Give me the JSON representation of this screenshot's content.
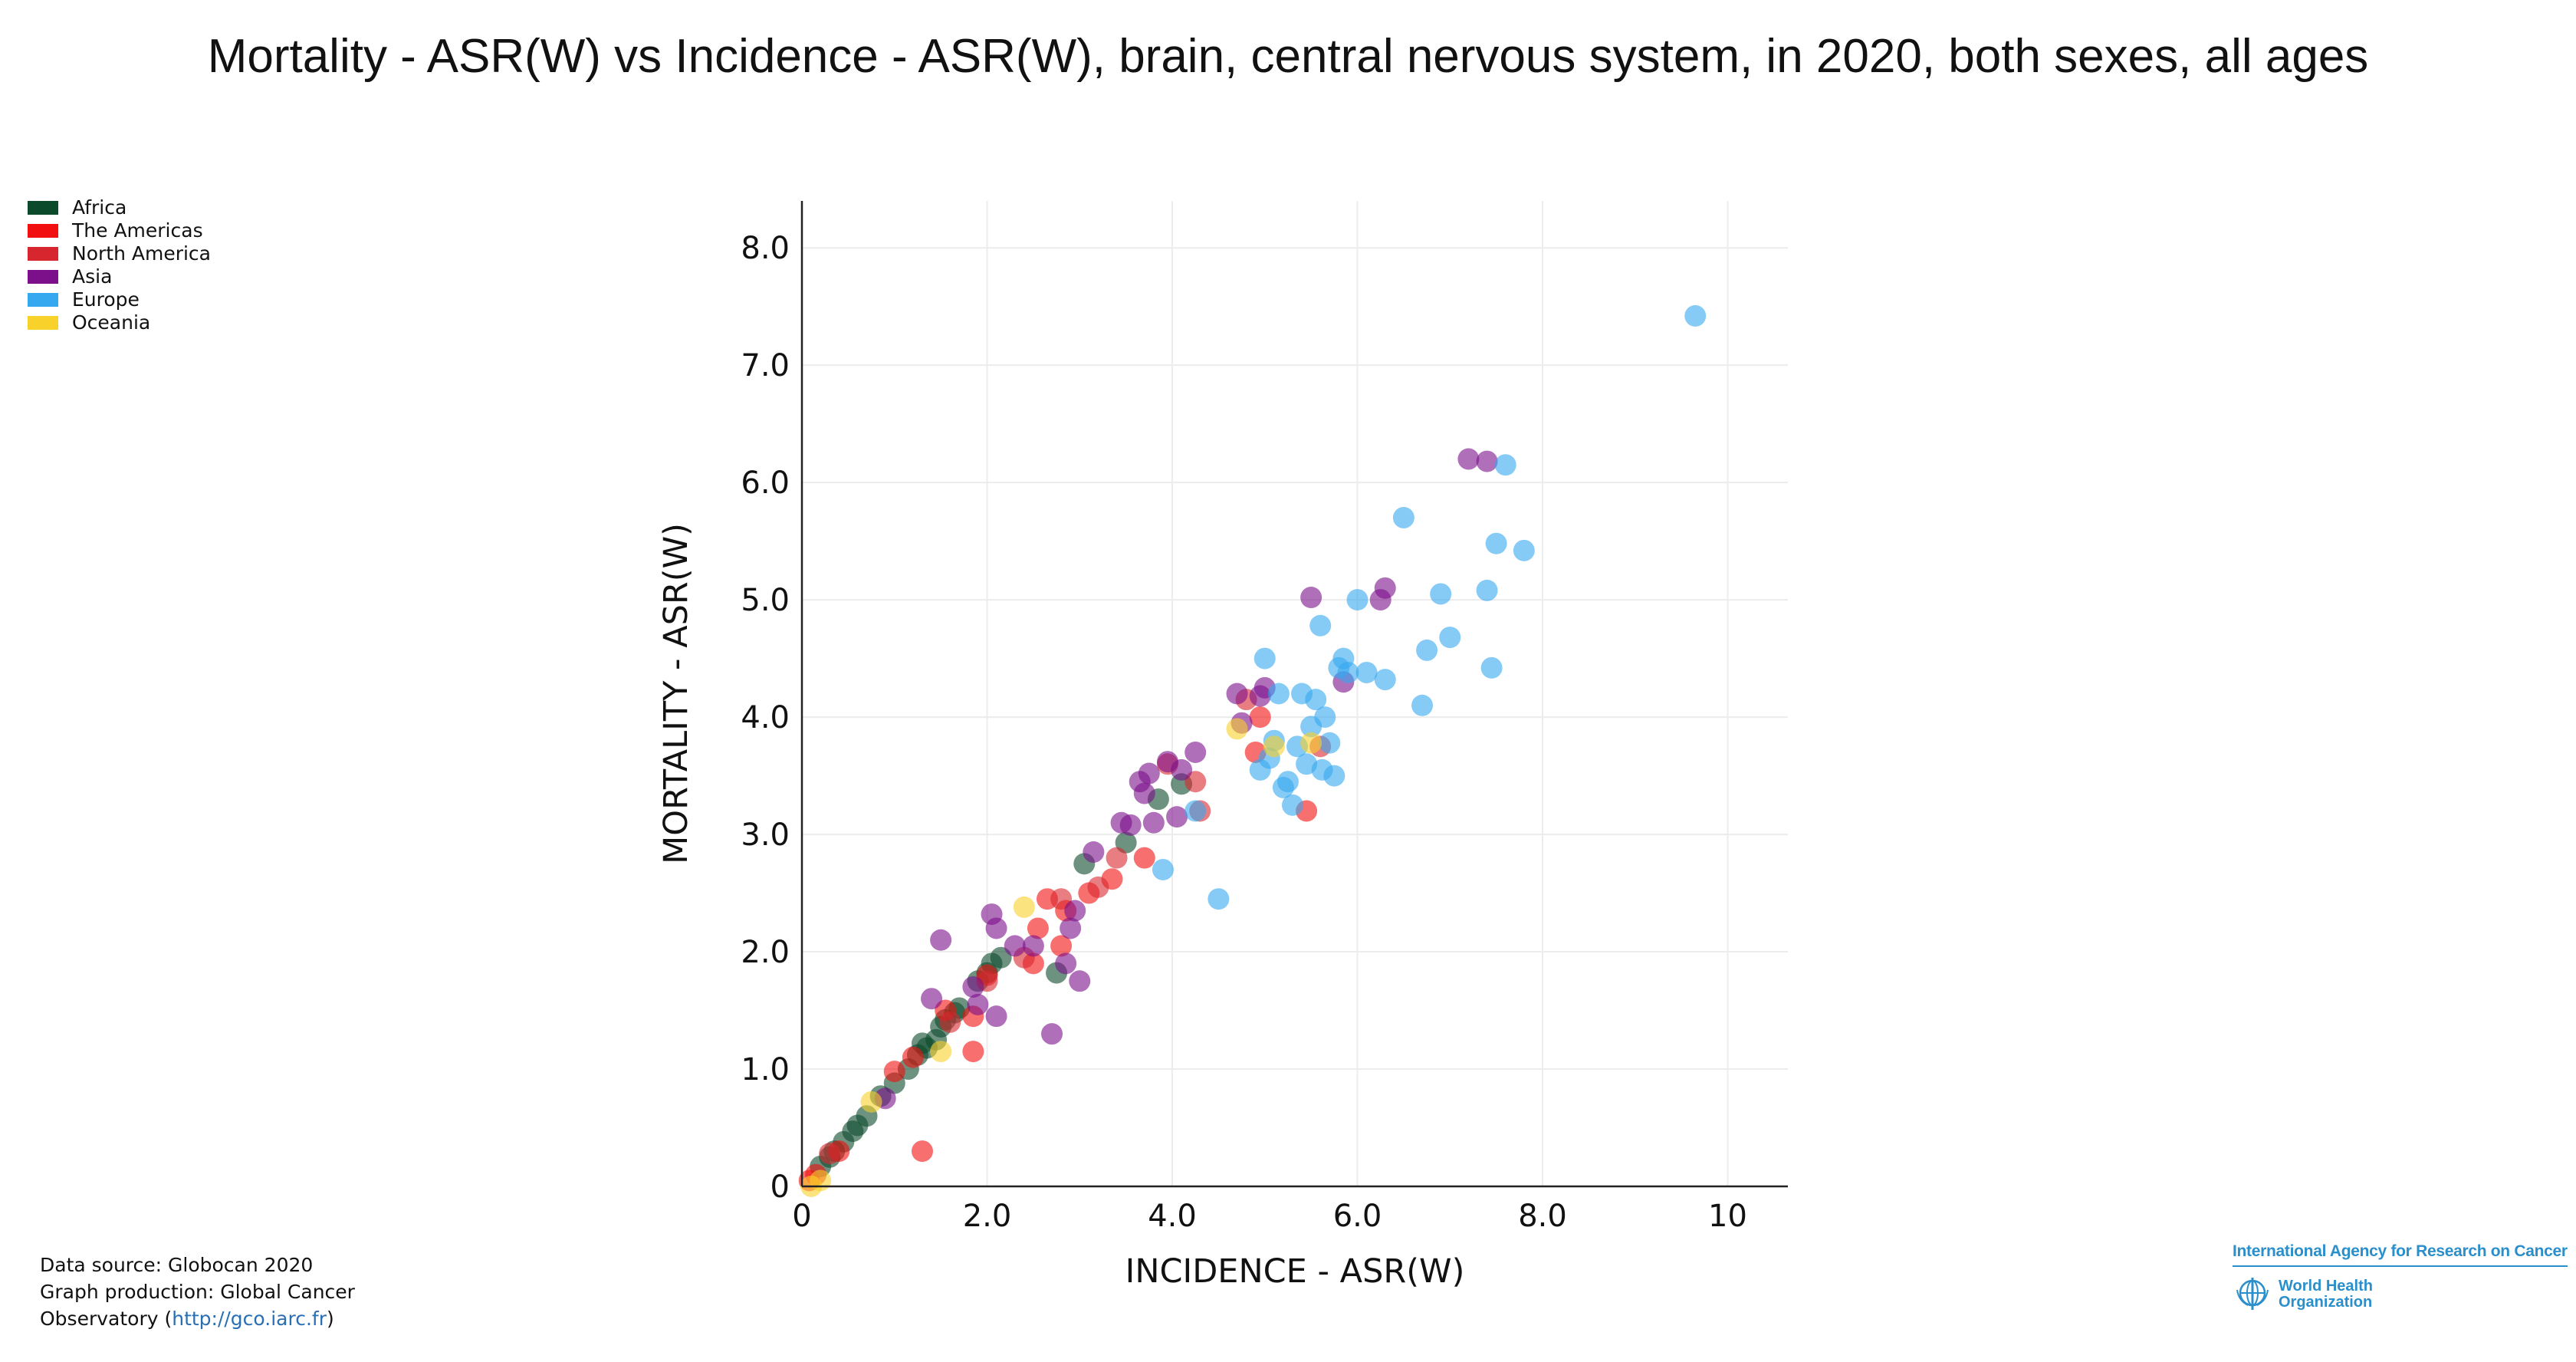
{
  "title": "Mortality - ASR(W) vs Incidence - ASR(W), brain, central nervous system, in 2020, both sexes, all ages",
  "legend": [
    {
      "name": "Africa",
      "color": "#0b4a2b"
    },
    {
      "name": "The Americas",
      "color": "#f10f0f"
    },
    {
      "name": "North America",
      "color": "#d8262e"
    },
    {
      "name": "Asia",
      "color": "#7c0f8a"
    },
    {
      "name": "Europe",
      "color": "#35a8f0"
    },
    {
      "name": "Oceania",
      "color": "#f8d12a"
    }
  ],
  "footer": {
    "line1": "Data source: Globocan 2020",
    "line2": "Graph production: Global Cancer",
    "line3_prefix": "Observatory (",
    "line3_link": "http://gco.iarc.fr",
    "line3_suffix": ")"
  },
  "logo": {
    "iarc": "International Agency for Research on Cancer",
    "who_line1": "World Health",
    "who_line2": "Organization"
  },
  "chart_data": {
    "type": "scatter",
    "xlabel": "INCIDENCE - ASR(W)",
    "ylabel": "MORTALITY - ASR(W)",
    "xlim": [
      0,
      10.65
    ],
    "ylim": [
      0,
      8.4
    ],
    "xticks": [
      {
        "v": 0,
        "label": "0"
      },
      {
        "v": 2,
        "label": "2.0"
      },
      {
        "v": 4,
        "label": "4.0"
      },
      {
        "v": 6,
        "label": "6.0"
      },
      {
        "v": 8,
        "label": "8.0"
      },
      {
        "v": 10,
        "label": "10"
      }
    ],
    "yticks": [
      {
        "v": 0,
        "label": "0"
      },
      {
        "v": 1,
        "label": "1.0"
      },
      {
        "v": 2,
        "label": "2.0"
      },
      {
        "v": 3,
        "label": "3.0"
      },
      {
        "v": 4,
        "label": "4.0"
      },
      {
        "v": 5,
        "label": "5.0"
      },
      {
        "v": 6,
        "label": "6.0"
      },
      {
        "v": 7,
        "label": "7.0"
      },
      {
        "v": 8,
        "label": "8.0"
      }
    ],
    "grid": true,
    "legend_position": "top-left",
    "series": [
      {
        "name": "Africa",
        "color": "#0b4a2b",
        "points": [
          [
            0.2,
            0.17
          ],
          [
            0.3,
            0.25
          ],
          [
            0.35,
            0.3
          ],
          [
            0.45,
            0.38
          ],
          [
            0.55,
            0.47
          ],
          [
            0.6,
            0.52
          ],
          [
            0.7,
            0.6
          ],
          [
            0.85,
            0.77
          ],
          [
            1.0,
            0.88
          ],
          [
            1.15,
            1.0
          ],
          [
            1.25,
            1.12
          ],
          [
            1.3,
            1.22
          ],
          [
            1.35,
            1.18
          ],
          [
            1.45,
            1.25
          ],
          [
            1.5,
            1.36
          ],
          [
            1.55,
            1.42
          ],
          [
            1.65,
            1.48
          ],
          [
            1.7,
            1.52
          ],
          [
            1.9,
            1.75
          ],
          [
            2.0,
            1.82
          ],
          [
            2.05,
            1.9
          ],
          [
            2.15,
            1.95
          ],
          [
            2.75,
            1.82
          ],
          [
            3.05,
            2.75
          ],
          [
            3.5,
            2.93
          ],
          [
            3.85,
            3.3
          ],
          [
            4.1,
            3.43
          ]
        ]
      },
      {
        "name": "The Americas",
        "color": "#f10f0f",
        "points": [
          [
            0.08,
            0.05
          ],
          [
            0.15,
            0.1
          ],
          [
            0.4,
            0.3
          ],
          [
            1.0,
            0.98
          ],
          [
            1.2,
            1.1
          ],
          [
            1.3,
            0.3
          ],
          [
            1.55,
            1.5
          ],
          [
            1.85,
            1.15
          ],
          [
            1.85,
            1.45
          ],
          [
            2.0,
            1.8
          ],
          [
            2.5,
            1.9
          ],
          [
            2.55,
            2.2
          ],
          [
            2.65,
            2.45
          ],
          [
            2.8,
            2.05
          ],
          [
            2.85,
            2.35
          ],
          [
            3.1,
            2.5
          ],
          [
            3.35,
            2.62
          ],
          [
            3.7,
            2.8
          ],
          [
            4.9,
            3.7
          ],
          [
            4.95,
            4.0
          ],
          [
            5.45,
            3.2
          ]
        ]
      },
      {
        "name": "North America",
        "color": "#d8262e",
        "points": [
          [
            0.3,
            0.28
          ],
          [
            1.6,
            1.4
          ],
          [
            2.0,
            1.75
          ],
          [
            2.4,
            1.95
          ],
          [
            2.8,
            2.45
          ],
          [
            3.2,
            2.55
          ],
          [
            3.4,
            2.8
          ],
          [
            3.95,
            3.6
          ],
          [
            4.25,
            3.45
          ],
          [
            4.3,
            3.2
          ],
          [
            4.8,
            4.15
          ],
          [
            5.6,
            3.75
          ]
        ]
      },
      {
        "name": "Asia",
        "color": "#7c0f8a",
        "points": [
          [
            0.9,
            0.75
          ],
          [
            1.4,
            1.6
          ],
          [
            1.5,
            2.1
          ],
          [
            1.85,
            1.7
          ],
          [
            1.9,
            1.55
          ],
          [
            2.05,
            2.32
          ],
          [
            2.1,
            1.45
          ],
          [
            2.1,
            2.2
          ],
          [
            2.3,
            2.05
          ],
          [
            2.5,
            2.05
          ],
          [
            2.7,
            1.3
          ],
          [
            2.85,
            1.9
          ],
          [
            2.9,
            2.2
          ],
          [
            2.95,
            2.35
          ],
          [
            3.0,
            1.75
          ],
          [
            3.15,
            2.85
          ],
          [
            3.45,
            3.1
          ],
          [
            3.55,
            3.08
          ],
          [
            3.65,
            3.45
          ],
          [
            3.7,
            3.35
          ],
          [
            3.75,
            3.52
          ],
          [
            3.8,
            3.1
          ],
          [
            3.95,
            3.62
          ],
          [
            4.05,
            3.15
          ],
          [
            4.1,
            3.55
          ],
          [
            4.25,
            3.7
          ],
          [
            4.7,
            4.2
          ],
          [
            4.75,
            3.95
          ],
          [
            4.95,
            4.18
          ],
          [
            5.0,
            4.25
          ],
          [
            5.5,
            5.02
          ],
          [
            5.85,
            4.3
          ],
          [
            6.25,
            5.0
          ],
          [
            6.3,
            5.1
          ],
          [
            7.2,
            6.2
          ],
          [
            7.4,
            6.18
          ]
        ]
      },
      {
        "name": "Europe",
        "color": "#35a8f0",
        "points": [
          [
            3.9,
            2.7
          ],
          [
            4.25,
            3.2
          ],
          [
            4.5,
            2.45
          ],
          [
            4.95,
            3.55
          ],
          [
            5.0,
            4.5
          ],
          [
            5.05,
            3.65
          ],
          [
            5.1,
            3.8
          ],
          [
            5.15,
            4.2
          ],
          [
            5.2,
            3.4
          ],
          [
            5.25,
            3.45
          ],
          [
            5.3,
            3.25
          ],
          [
            5.35,
            3.75
          ],
          [
            5.4,
            4.2
          ],
          [
            5.45,
            3.6
          ],
          [
            5.5,
            3.92
          ],
          [
            5.55,
            4.15
          ],
          [
            5.6,
            4.78
          ],
          [
            5.62,
            3.55
          ],
          [
            5.65,
            4.0
          ],
          [
            5.7,
            3.78
          ],
          [
            5.75,
            3.5
          ],
          [
            5.8,
            4.42
          ],
          [
            5.85,
            4.5
          ],
          [
            5.9,
            4.38
          ],
          [
            6.0,
            5.0
          ],
          [
            6.1,
            4.38
          ],
          [
            6.3,
            4.32
          ],
          [
            6.5,
            5.7
          ],
          [
            6.7,
            4.1
          ],
          [
            6.75,
            4.57
          ],
          [
            6.9,
            5.05
          ],
          [
            7.0,
            4.68
          ],
          [
            7.4,
            5.08
          ],
          [
            7.45,
            4.42
          ],
          [
            7.5,
            5.48
          ],
          [
            7.6,
            6.15
          ],
          [
            7.8,
            5.42
          ],
          [
            9.65,
            7.42
          ]
        ]
      },
      {
        "name": "Oceania",
        "color": "#f8d12a",
        "points": [
          [
            0.1,
            0.0
          ],
          [
            0.2,
            0.05
          ],
          [
            0.75,
            0.72
          ],
          [
            1.5,
            1.15
          ],
          [
            2.4,
            2.38
          ],
          [
            4.7,
            3.9
          ],
          [
            5.1,
            3.75
          ],
          [
            5.5,
            3.78
          ]
        ]
      }
    ]
  }
}
